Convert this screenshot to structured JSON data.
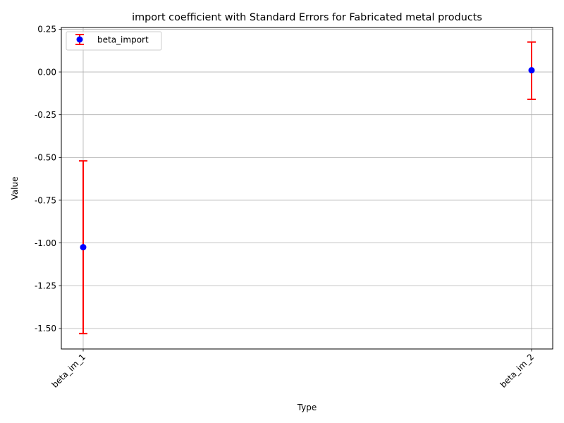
{
  "chart_data": {
    "type": "scatter",
    "title": "import coefficient with Standard Errors for Fabricated metal products",
    "xlabel": "Type",
    "ylabel": "Value",
    "categories": [
      "beta_im_1",
      "beta_im_2"
    ],
    "series": [
      {
        "name": "beta_import",
        "values": [
          -1.025,
          0.01
        ],
        "error_low": [
          -1.53,
          -0.16
        ],
        "error_high": [
          -0.52,
          0.175
        ],
        "marker_color": "#0000ff",
        "error_color": "#ff0000"
      }
    ],
    "ylim": [
      -1.62,
      0.26
    ],
    "yticks": [
      -1.5,
      -1.25,
      -1.0,
      -0.75,
      -0.5,
      -0.25,
      0.0,
      0.25
    ],
    "grid": true,
    "legend_position": "top-left"
  }
}
